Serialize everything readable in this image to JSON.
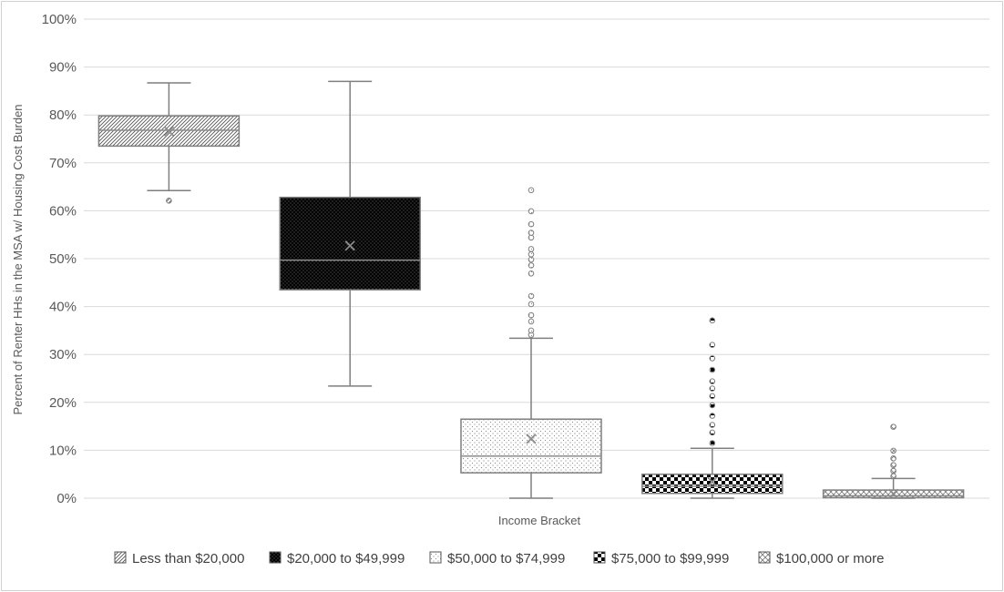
{
  "chart_data": {
    "type": "box",
    "title": "",
    "xlabel": "Income Bracket",
    "ylabel": "Percent of Renter HHs in the MSA w/ Housing Cost Burden",
    "ylim": [
      0,
      100
    ],
    "y_ticks": [
      "0%",
      "10%",
      "20%",
      "30%",
      "40%",
      "50%",
      "60%",
      "70%",
      "80%",
      "90%",
      "100%"
    ],
    "grid": true,
    "legend_position": "bottom",
    "series": [
      {
        "name": "Less than $20,000",
        "pattern": "diagonal-hatch",
        "min": 64.2,
        "q1": 73.5,
        "median": 76.8,
        "q3": 79.8,
        "max": 86.7,
        "mean": 76.6,
        "outliers": [
          62.1
        ]
      },
      {
        "name": "$20,000 to $49,999",
        "pattern": "black-dotted",
        "min": 23.4,
        "q1": 43.5,
        "median": 49.7,
        "q3": 62.8,
        "max": 87.0,
        "mean": 52.7,
        "outliers": []
      },
      {
        "name": "$50,000 to $74,999",
        "pattern": "light-dotted",
        "min": 0.0,
        "q1": 5.3,
        "median": 8.8,
        "q3": 16.5,
        "max": 33.4,
        "mean": 12.4,
        "outliers": [
          34.1,
          35.0,
          36.9,
          38.2,
          40.5,
          42.2,
          46.9,
          48.6,
          49.8,
          50.9,
          52.0,
          54.4,
          55.4,
          57.2,
          59.9,
          64.3
        ]
      },
      {
        "name": "$75,000 to $99,999",
        "pattern": "checkerboard",
        "min": 0.0,
        "q1": 1.0,
        "median": 2.5,
        "q3": 5.0,
        "max": 10.4,
        "mean": 3.4,
        "outliers": [
          11.5,
          13.7,
          15.3,
          17.2,
          19.4,
          21.3,
          22.9,
          24.4,
          26.8,
          29.2,
          32.0,
          37.1
        ]
      },
      {
        "name": "$100,000 or more",
        "pattern": "crosshatch",
        "min": 0.0,
        "q1": 0.1,
        "median": 0.5,
        "q3": 1.7,
        "max": 4.1,
        "mean": 0.9,
        "outliers": [
          4.6,
          5.7,
          6.9,
          8.3,
          9.9,
          14.9
        ]
      }
    ]
  }
}
